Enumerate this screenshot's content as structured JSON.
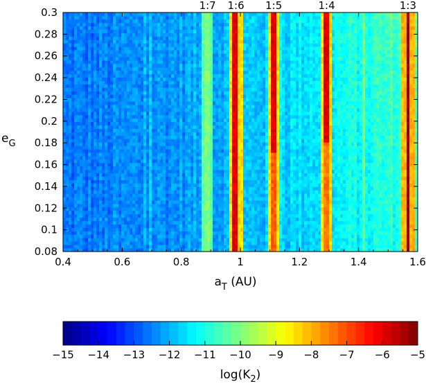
{
  "chart_data": {
    "type": "heatmap",
    "xlabel_main": "a",
    "xlabel_sub": "T",
    "xlabel_unit": " (AU)",
    "ylabel_main": "e",
    "ylabel_sub": "G",
    "xlim": [
      0.4,
      1.6
    ],
    "ylim": [
      0.08,
      0.3
    ],
    "x_ticks": [
      0.4,
      0.6,
      0.8,
      1.0,
      1.2,
      1.4,
      1.6
    ],
    "x_tick_labels": [
      "0.4",
      "0.6",
      "0.8",
      "1",
      "1.2",
      "1.4",
      "1.6"
    ],
    "y_ticks": [
      0.08,
      0.1,
      0.12,
      0.14,
      0.16,
      0.18,
      0.2,
      0.22,
      0.24,
      0.26,
      0.28,
      0.3
    ],
    "y_tick_labels": [
      "0.08",
      "0.1",
      "0.12",
      "0.14",
      "0.16",
      "0.18",
      "0.2",
      "0.22",
      "0.24",
      "0.26",
      "0.28",
      "0.3"
    ],
    "grid": false,
    "resonances": [
      {
        "label": "1:7",
        "a": 0.889
      },
      {
        "label": "1:6",
        "a": 0.985
      },
      {
        "label": "1:5",
        "a": 1.113
      },
      {
        "label": "1:4",
        "a": 1.292
      },
      {
        "label": "1:3",
        "a": 1.567
      }
    ],
    "colorbar": {
      "label_main": "log(K",
      "label_sub": "2",
      "label_end": ")",
      "range": [
        -15,
        -5
      ],
      "ticks": [
        -15,
        -14,
        -13,
        -12,
        -11,
        -10,
        -9,
        -8,
        -7,
        -6,
        -5
      ],
      "tick_labels": [
        "−15",
        "−14",
        "−13",
        "−12",
        "−11",
        "−10",
        "−9",
        "−8",
        "−7",
        "−6",
        "−5"
      ],
      "colormap": "jet"
    },
    "approx_field": {
      "background_low_a": -12.6,
      "background_high_a": -10.8,
      "resonance_peak_values": {
        "1:7": -10.0,
        "1:6": -6.0,
        "1:5": -6.0,
        "1:4": -6.0,
        "1:3": -5.2
      }
    }
  }
}
